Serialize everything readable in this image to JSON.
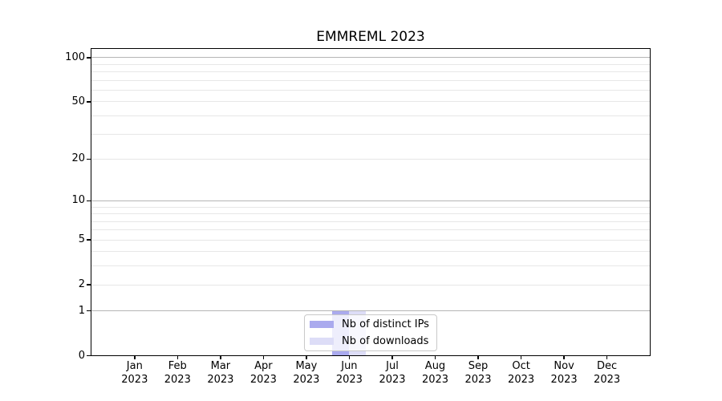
{
  "figure": {
    "title": "EMMREML 2023"
  },
  "chart_data": {
    "type": "bar",
    "title": "EMMREML 2023",
    "x_months": [
      "Jan",
      "Feb",
      "Mar",
      "Apr",
      "May",
      "Jun",
      "Jul",
      "Aug",
      "Sep",
      "Oct",
      "Nov",
      "Dec"
    ],
    "x_year": "2023",
    "categories": [
      "Jan 2023",
      "Feb 2023",
      "Mar 2023",
      "Apr 2023",
      "May 2023",
      "Jun 2023",
      "Jul 2023",
      "Aug 2023",
      "Sep 2023",
      "Oct 2023",
      "Nov 2023",
      "Dec 2023"
    ],
    "series": [
      {
        "name": "Nb of distinct IPs",
        "color": "#aaaaee",
        "values": [
          0,
          0,
          0,
          0,
          0,
          1,
          0,
          0,
          0,
          0,
          0,
          0
        ]
      },
      {
        "name": "Nb of downloads",
        "color": "#ddddf7",
        "values": [
          0,
          0,
          0,
          0,
          0,
          1,
          0,
          0,
          0,
          0,
          0,
          0
        ]
      }
    ],
    "yscale": "log10(1+y)",
    "ylim": [
      0,
      116
    ],
    "yticks": [
      0,
      1,
      2,
      5,
      10,
      20,
      50,
      100
    ],
    "major_gridlines": [
      1,
      10,
      100
    ],
    "minor_gridlines": [
      2,
      3,
      4,
      5,
      6,
      7,
      8,
      9,
      20,
      30,
      40,
      50,
      60,
      70,
      80,
      90
    ],
    "grid": "horizontal",
    "legend_position": "lower center",
    "colors": {
      "major_gridline": "#b5b5b5",
      "minor_gridline": "#e7e7e7",
      "axis": "#000000",
      "background": "#ffffff"
    }
  }
}
